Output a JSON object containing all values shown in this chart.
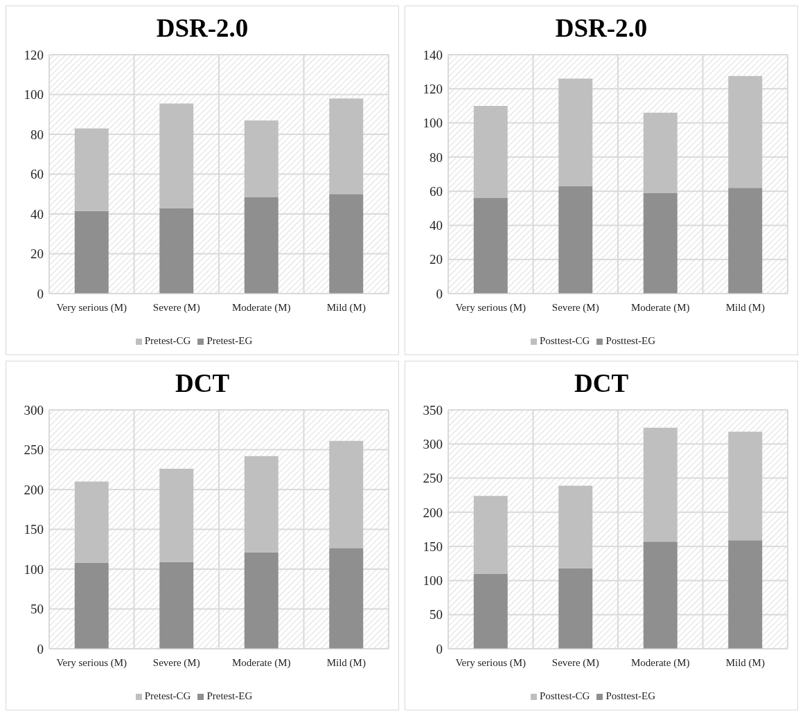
{
  "chart_data": [
    {
      "type": "bar",
      "title": "DSR-2.0",
      "categories": [
        "Very serious (M)",
        "Severe (M)",
        "Moderate (M)",
        "Mild (M)"
      ],
      "stacked": true,
      "ylim": [
        0,
        120
      ],
      "yticks": [
        0,
        20,
        40,
        60,
        80,
        100,
        120
      ],
      "grid": true,
      "legend": "bottom",
      "series": [
        {
          "name": "Pretest-EG",
          "color": "#8f8f8f",
          "values": [
            41.5,
            43,
            48.5,
            50
          ]
        },
        {
          "name": "Pretest-CG",
          "color": "#bfbfbf",
          "values": [
            41.5,
            52.5,
            38.5,
            48
          ]
        }
      ]
    },
    {
      "type": "bar",
      "title": "DSR-2.0",
      "categories": [
        "Very serious (M)",
        "Severe (M)",
        "Moderate (M)",
        "Mild (M)"
      ],
      "stacked": true,
      "ylim": [
        0,
        140
      ],
      "yticks": [
        0,
        20,
        40,
        60,
        80,
        100,
        120,
        140
      ],
      "grid": true,
      "legend": "bottom",
      "series": [
        {
          "name": "Posttest-EG",
          "color": "#8f8f8f",
          "values": [
            56,
            63,
            59,
            62
          ]
        },
        {
          "name": "Posttest-CG",
          "color": "#bfbfbf",
          "values": [
            54,
            63,
            47,
            65.5
          ]
        }
      ]
    },
    {
      "type": "bar",
      "title": "DCT",
      "categories": [
        "Very serious (M)",
        "Severe (M)",
        "Moderate (M)",
        "Mild (M)"
      ],
      "stacked": true,
      "ylim": [
        0,
        300
      ],
      "yticks": [
        0,
        50,
        100,
        150,
        200,
        250,
        300
      ],
      "grid": true,
      "legend": "bottom",
      "series": [
        {
          "name": "Pretest-EG",
          "color": "#8f8f8f",
          "values": [
            108,
            109,
            121,
            126
          ]
        },
        {
          "name": "Pretest-CG",
          "color": "#bfbfbf",
          "values": [
            102,
            117,
            121,
            135
          ]
        }
      ]
    },
    {
      "type": "bar",
      "title": "DCT",
      "categories": [
        "Very serious (M)",
        "Severe (M)",
        "Moderate (M)",
        "Mild (M)"
      ],
      "stacked": true,
      "ylim": [
        0,
        350
      ],
      "yticks": [
        0,
        50,
        100,
        150,
        200,
        250,
        300,
        350
      ],
      "grid": true,
      "legend": "bottom",
      "series": [
        {
          "name": "Posttest-EG",
          "color": "#8f8f8f",
          "values": [
            110,
            118,
            157,
            159
          ]
        },
        {
          "name": "Posttest-CG",
          "color": "#bfbfbf",
          "values": [
            114,
            121,
            167,
            159
          ]
        }
      ]
    }
  ]
}
